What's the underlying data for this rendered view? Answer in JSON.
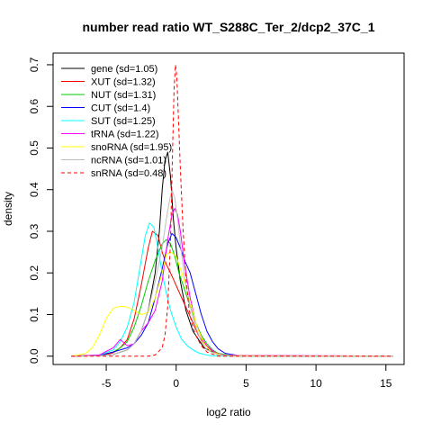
{
  "chart_data": {
    "type": "line",
    "title": "number read ratio WT_S288C_Ter_2/dcp2_37C_1",
    "xlabel": "log2 ratio",
    "ylabel": "density",
    "xlim": [
      -8.8,
      16.3
    ],
    "ylim": [
      -0.02,
      0.728
    ],
    "xticks": [
      -5,
      0,
      5,
      10,
      15
    ],
    "yticks": [
      0.0,
      0.1,
      0.2,
      0.3,
      0.4,
      0.5,
      0.6,
      0.7
    ],
    "grid": false,
    "legend_position": "top-left",
    "series": [
      {
        "name": "gene (sd=1.05)",
        "color": "#000000",
        "dash": "solid",
        "x": [
          -7.5,
          -5.5,
          -4.5,
          -3.5,
          -3.0,
          -2.5,
          -2.0,
          -1.5,
          -1.2,
          -1.0,
          -0.8,
          -0.6,
          -0.4,
          -0.2,
          0.0,
          0.3,
          0.7,
          1.2,
          2.0,
          3.0,
          4.0,
          6.0,
          15.5
        ],
        "y": [
          0.0,
          0.001,
          0.004,
          0.015,
          0.03,
          0.06,
          0.11,
          0.2,
          0.3,
          0.4,
          0.47,
          0.49,
          0.43,
          0.33,
          0.26,
          0.18,
          0.11,
          0.06,
          0.02,
          0.004,
          0.001,
          0.0,
          0.0
        ]
      },
      {
        "name": "XUT (sd=1.32)",
        "color": "#ff0000",
        "dash": "solid",
        "x": [
          -7.5,
          -5.5,
          -4.5,
          -4.0,
          -3.5,
          -3.0,
          -2.5,
          -2.0,
          -1.7,
          -1.3,
          -1.0,
          -0.7,
          -0.4,
          0.0,
          0.4,
          0.8,
          1.2,
          1.6,
          2.0,
          2.5,
          3.0,
          4.0,
          15.5
        ],
        "y": [
          0.0,
          0.001,
          0.008,
          0.02,
          0.04,
          0.09,
          0.17,
          0.26,
          0.3,
          0.29,
          0.25,
          0.22,
          0.2,
          0.17,
          0.14,
          0.11,
          0.08,
          0.05,
          0.03,
          0.015,
          0.006,
          0.0,
          0.0
        ]
      },
      {
        "name": "NUT (sd=1.31)",
        "color": "#00cd00",
        "dash": "solid",
        "x": [
          -7.5,
          -5.5,
          -4.5,
          -4.0,
          -3.5,
          -3.0,
          -2.5,
          -2.0,
          -1.5,
          -1.0,
          -0.7,
          -0.4,
          -0.1,
          0.2,
          0.6,
          1.0,
          1.4,
          1.8,
          2.2,
          2.6,
          3.0,
          4.0,
          15.5
        ],
        "y": [
          0.0,
          0.002,
          0.01,
          0.02,
          0.035,
          0.07,
          0.12,
          0.18,
          0.23,
          0.27,
          0.28,
          0.27,
          0.24,
          0.2,
          0.16,
          0.12,
          0.08,
          0.05,
          0.03,
          0.015,
          0.007,
          0.001,
          0.0
        ]
      },
      {
        "name": "CUT (sd=1.4)",
        "color": "#0000ff",
        "dash": "solid",
        "x": [
          -7.5,
          -5.5,
          -4.5,
          -3.5,
          -3.0,
          -2.5,
          -2.0,
          -1.5,
          -1.0,
          -0.6,
          -0.3,
          0.0,
          0.3,
          0.6,
          1.0,
          1.4,
          1.8,
          2.2,
          2.6,
          3.0,
          3.5,
          4.5,
          15.5
        ],
        "y": [
          0.0,
          0.002,
          0.01,
          0.02,
          0.03,
          0.05,
          0.08,
          0.14,
          0.21,
          0.27,
          0.295,
          0.285,
          0.26,
          0.23,
          0.2,
          0.15,
          0.1,
          0.06,
          0.035,
          0.018,
          0.007,
          0.001,
          0.0
        ]
      },
      {
        "name": "SUT (sd=1.25)",
        "color": "#00ffff",
        "dash": "solid",
        "x": [
          -7.5,
          -5.5,
          -4.5,
          -4.0,
          -3.5,
          -3.0,
          -2.6,
          -2.2,
          -1.9,
          -1.6,
          -1.3,
          -1.0,
          -0.7,
          -0.4,
          0.0,
          0.4,
          0.8,
          1.2,
          1.6,
          2.0,
          2.5,
          3.5,
          15.5
        ],
        "y": [
          0.0,
          0.003,
          0.015,
          0.035,
          0.07,
          0.13,
          0.21,
          0.29,
          0.32,
          0.31,
          0.26,
          0.2,
          0.15,
          0.11,
          0.07,
          0.04,
          0.025,
          0.015,
          0.008,
          0.004,
          0.001,
          0.0,
          0.0
        ]
      },
      {
        "name": "tRNA (sd=1.22)",
        "color": "#ff00ff",
        "dash": "solid",
        "x": [
          -7.5,
          -5.5,
          -4.5,
          -4.0,
          -3.5,
          -3.0,
          -2.5,
          -2.0,
          -1.5,
          -1.0,
          -0.6,
          -0.3,
          -0.1,
          0.1,
          0.3,
          0.6,
          1.0,
          1.4,
          1.8,
          2.2,
          2.8,
          3.5,
          15.5
        ],
        "y": [
          0.0,
          0.003,
          0.02,
          0.04,
          0.025,
          0.03,
          0.06,
          0.08,
          0.11,
          0.18,
          0.28,
          0.34,
          0.355,
          0.34,
          0.3,
          0.22,
          0.14,
          0.08,
          0.045,
          0.025,
          0.008,
          0.002,
          0.0
        ]
      },
      {
        "name": "snoRNA (sd=1.95)",
        "color": "#ffff00",
        "dash": "solid",
        "x": [
          -7.5,
          -6.5,
          -6.0,
          -5.5,
          -5.0,
          -4.5,
          -4.0,
          -3.5,
          -3.0,
          -2.5,
          -2.0,
          -1.5,
          -1.0,
          -0.7,
          -0.4,
          0.0,
          0.5,
          1.0,
          1.5,
          2.0,
          2.5,
          3.5,
          15.5
        ],
        "y": [
          0.0,
          0.006,
          0.02,
          0.05,
          0.09,
          0.115,
          0.12,
          0.118,
          0.11,
          0.1,
          0.105,
          0.14,
          0.2,
          0.245,
          0.25,
          0.24,
          0.19,
          0.13,
          0.07,
          0.03,
          0.01,
          0.001,
          0.0
        ]
      },
      {
        "name": "ncRNA (sd=1.01)",
        "color": "#bebebe",
        "dash": "solid",
        "x": [
          -7.5,
          -5.5,
          -4.5,
          -3.5,
          -3.0,
          -2.5,
          -2.0,
          -1.5,
          -1.0,
          -0.7,
          -0.5,
          -0.3,
          -0.1,
          0.1,
          0.3,
          0.6,
          1.0,
          1.4,
          1.8,
          2.2,
          3.0,
          4.0,
          15.5
        ],
        "y": [
          0.0,
          0.001,
          0.004,
          0.015,
          0.03,
          0.06,
          0.11,
          0.18,
          0.26,
          0.33,
          0.37,
          0.4,
          0.38,
          0.33,
          0.27,
          0.19,
          0.12,
          0.07,
          0.035,
          0.015,
          0.003,
          0.0,
          0.0
        ]
      },
      {
        "name": "snRNA (sd=0.48)",
        "color": "#ff0000",
        "dash": "dashed",
        "x": [
          -7.5,
          -3.0,
          -2.0,
          -1.5,
          -1.0,
          -0.8,
          -0.6,
          -0.4,
          -0.25,
          -0.15,
          -0.05,
          0.05,
          0.15,
          0.3,
          0.5,
          0.7,
          0.9,
          1.1,
          1.4,
          1.8,
          2.2,
          3.0,
          15.5
        ],
        "y": [
          0.0,
          0.0,
          0.0,
          0.003,
          0.02,
          0.05,
          0.12,
          0.28,
          0.5,
          0.64,
          0.7,
          0.67,
          0.58,
          0.45,
          0.3,
          0.19,
          0.12,
          0.08,
          0.05,
          0.025,
          0.01,
          0.0,
          0.0
        ]
      }
    ]
  }
}
